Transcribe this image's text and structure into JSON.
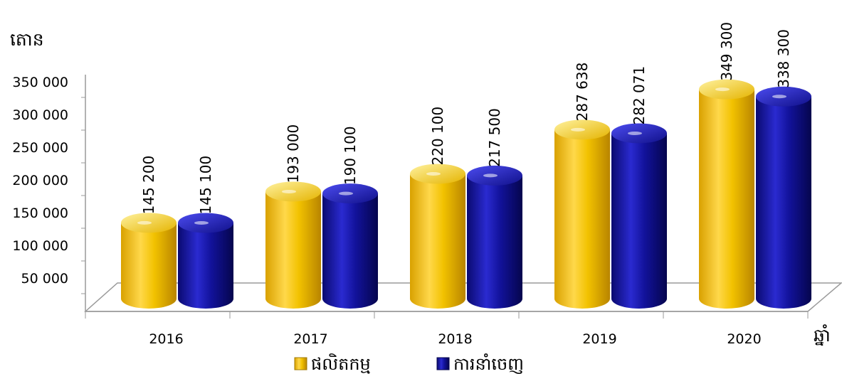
{
  "chart_data": {
    "type": "bar",
    "unit_label": "តោន",
    "x_axis_label": "ឆ្នាំ",
    "categories": [
      "2016",
      "2017",
      "2018",
      "2019",
      "2020"
    ],
    "series": [
      {
        "name": "ផលិតកម្ម",
        "values": [
          145200,
          193000,
          220100,
          287638,
          349300
        ],
        "labels": [
          "145 200",
          "193 000",
          "220 100",
          "287 638",
          "349 300"
        ],
        "color": "#f2c200"
      },
      {
        "name": "ការនាំចេញ",
        "values": [
          145100,
          190100,
          217500,
          282071,
          338300
        ],
        "labels": [
          "145 100",
          "190 100",
          "217 500",
          "282 071",
          "338 300"
        ],
        "color": "#12129a"
      }
    ],
    "y_ticks": [
      50000,
      100000,
      150000,
      200000,
      250000,
      300000,
      350000
    ],
    "y_tick_labels": [
      "50 000",
      "100 000",
      "150 000",
      "200 000",
      "250 000",
      "300 000",
      "350 000"
    ],
    "ylim": [
      0,
      350000
    ],
    "legend_position": "bottom",
    "grid": false
  }
}
